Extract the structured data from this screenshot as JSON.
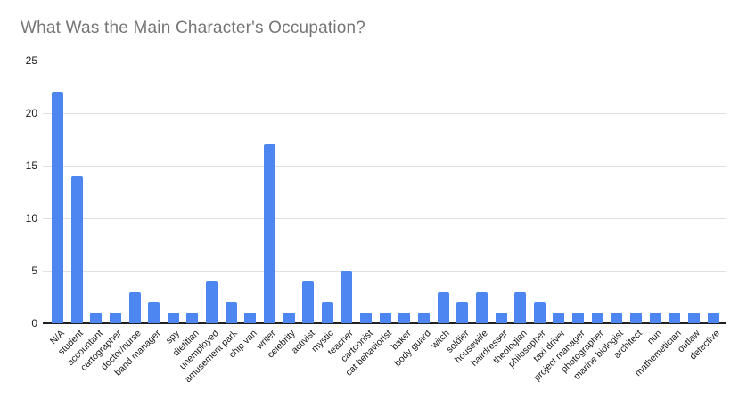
{
  "chart_data": {
    "type": "bar",
    "title": "What Was the Main Character's Occupation?",
    "categories": [
      "N/A",
      "student",
      "accountant",
      "cartographer",
      "doctor/nurse",
      "band manager",
      "spy",
      "dietitian",
      "unemployed",
      "amusement park",
      "chip van",
      "writer",
      "celebrity",
      "activist",
      "mystic",
      "teacher",
      "cartoonist",
      "cat behaviorist",
      "baker",
      "body guard",
      "witch",
      "soldier",
      "housewife",
      "hairdresser",
      "theologian",
      "philosopher",
      "taxi driver",
      "project manager",
      "photographer",
      "marine biologist",
      "architect",
      "nun",
      "mathemetician",
      "outlaw",
      "detective"
    ],
    "values": [
      22,
      14,
      1,
      1,
      3,
      2,
      1,
      1,
      4,
      2,
      1,
      17,
      1,
      4,
      2,
      5,
      1,
      1,
      1,
      1,
      3,
      2,
      3,
      1,
      3,
      2,
      1,
      1,
      1,
      1,
      1,
      1,
      1,
      1,
      1
    ],
    "xlabel": "",
    "ylabel": "",
    "ylim": [
      0,
      25
    ],
    "yticks": [
      0,
      5,
      10,
      15,
      20,
      25
    ],
    "grid": true,
    "legend": "none",
    "colors": {
      "bar": "#4d86f0",
      "title": "#757575",
      "gridline": "#e0e0e0",
      "axis_line": "#212121",
      "tick_label": "#1a1a1a",
      "category_label": "#1a1a1a",
      "background": "#ffffff"
    }
  }
}
